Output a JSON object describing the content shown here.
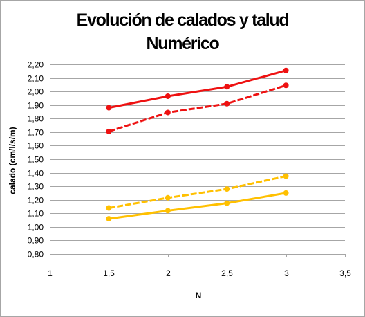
{
  "chart_data": {
    "type": "line",
    "title_lines": [
      "Evolución de calados y talud",
      "Numérico"
    ],
    "xlabel": "N",
    "ylabel": "calado  (cm/l/s/m)",
    "xlim": [
      1,
      3.5
    ],
    "ylim": [
      0.8,
      2.2
    ],
    "x_ticks": [
      "1",
      "1,5",
      "2",
      "2,5",
      "3",
      "3,5"
    ],
    "y_ticks": [
      "0,80",
      "0,90",
      "1,00",
      "1,10",
      "1,20",
      "1,30",
      "1,40",
      "1,50",
      "1,60",
      "1,70",
      "1,80",
      "1,90",
      "2,00",
      "2,10",
      "2,20"
    ],
    "grid": "horizontal",
    "legend": "none",
    "series": [
      {
        "x": [
          1.5,
          2,
          2.5,
          3
        ],
        "values": [
          1.88,
          1.965,
          2.035,
          2.155
        ],
        "color": "#ee1111",
        "dash": "solid"
      },
      {
        "x": [
          1.5,
          2,
          2.5,
          3
        ],
        "values": [
          1.705,
          1.845,
          1.91,
          2.045
        ],
        "color": "#ee1111",
        "dash": "dashed"
      },
      {
        "x": [
          1.5,
          2,
          2.5,
          3
        ],
        "values": [
          1.14,
          1.215,
          1.28,
          1.375
        ],
        "color": "#ffc000",
        "dash": "dashed"
      },
      {
        "x": [
          1.5,
          2,
          2.5,
          3
        ],
        "values": [
          1.06,
          1.12,
          1.175,
          1.25
        ],
        "color": "#ffc000",
        "dash": "solid"
      }
    ]
  }
}
